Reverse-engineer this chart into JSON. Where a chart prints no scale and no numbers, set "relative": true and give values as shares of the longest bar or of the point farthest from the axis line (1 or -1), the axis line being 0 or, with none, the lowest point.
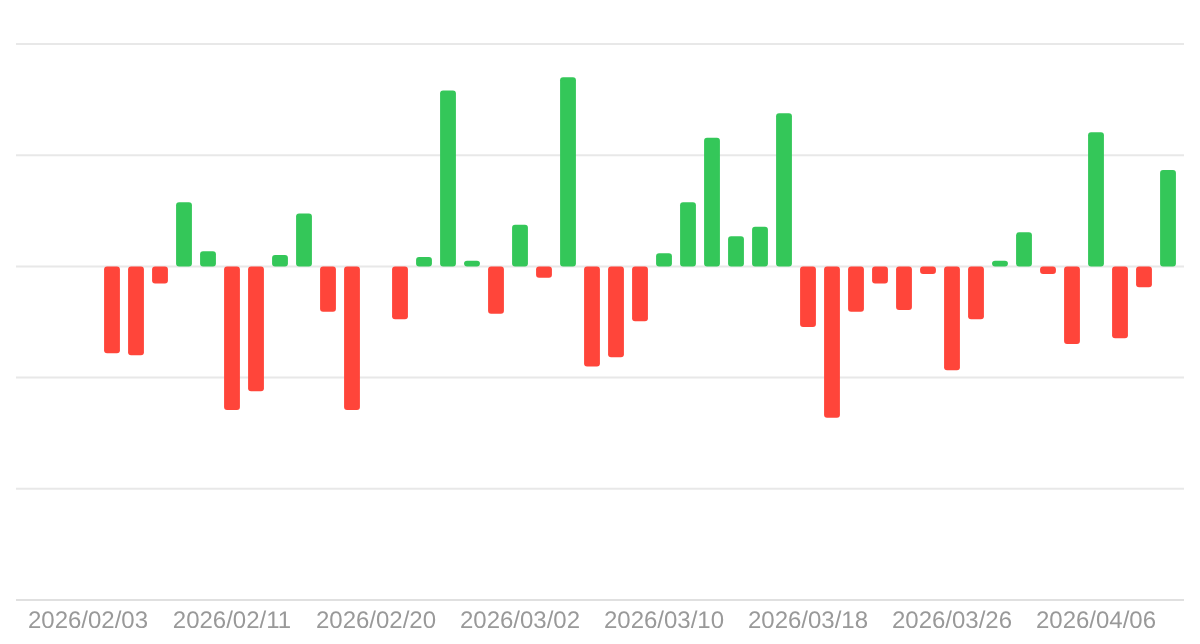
{
  "chart_data": {
    "type": "bar",
    "relative": true,
    "grid": "y",
    "categories": [
      "2026/02/03",
      null,
      null,
      null,
      null,
      null,
      "2026/02/11",
      null,
      null,
      null,
      null,
      null,
      "2026/02/20",
      null,
      null,
      null,
      null,
      null,
      "2026/03/02",
      null,
      null,
      null,
      null,
      null,
      "2026/03/10",
      null,
      null,
      null,
      null,
      null,
      "2026/03/18",
      null,
      null,
      null,
      null,
      null,
      "2026/03/26",
      null,
      null,
      null,
      null,
      null,
      "2026/04/06",
      null,
      null,
      null
    ],
    "values": [
      null,
      -0.46,
      -0.47,
      -0.09,
      0.34,
      0.08,
      -0.76,
      -0.66,
      0.06,
      0.28,
      -0.24,
      -0.76,
      0,
      -0.28,
      0.05,
      0.93,
      0.03,
      -0.25,
      0.22,
      -0.06,
      1,
      -0.53,
      -0.48,
      -0.29,
      0.07,
      0.34,
      0.68,
      0.16,
      0.21,
      0.81,
      -0.32,
      -0.8,
      -0.24,
      -0.09,
      -0.23,
      -0.04,
      -0.55,
      -0.28,
      0.03,
      0.18,
      -0.04,
      -0.41,
      0.71,
      -0.38,
      -0.11,
      0.51
    ],
    "colors": [
      null,
      "#ff453a",
      "#ff453a",
      "#ff453a",
      "#34c759",
      "#34c759",
      "#ff453a",
      "#ff453a",
      "#34c759",
      "#34c759",
      "#ff453a",
      "#ff453a",
      "#34c759",
      "#ff453a",
      "#34c759",
      "#34c759",
      "#34c759",
      "#ff453a",
      "#34c759",
      "#ff453a",
      "#34c759",
      "#ff453a",
      "#ff453a",
      "#ff453a",
      "#34c759",
      "#34c759",
      "#34c759",
      "#34c759",
      "#34c759",
      "#34c759",
      "#ff453a",
      "#ff453a",
      "#ff453a",
      "#ff453a",
      "#ff453a",
      "#ff453a",
      "#ff453a",
      "#ff453a",
      "#34c759",
      "#34c759",
      "#ff453a",
      "#ff453a",
      "#34c759",
      "#ff453a",
      "#ff453a",
      "#34c759"
    ]
  }
}
